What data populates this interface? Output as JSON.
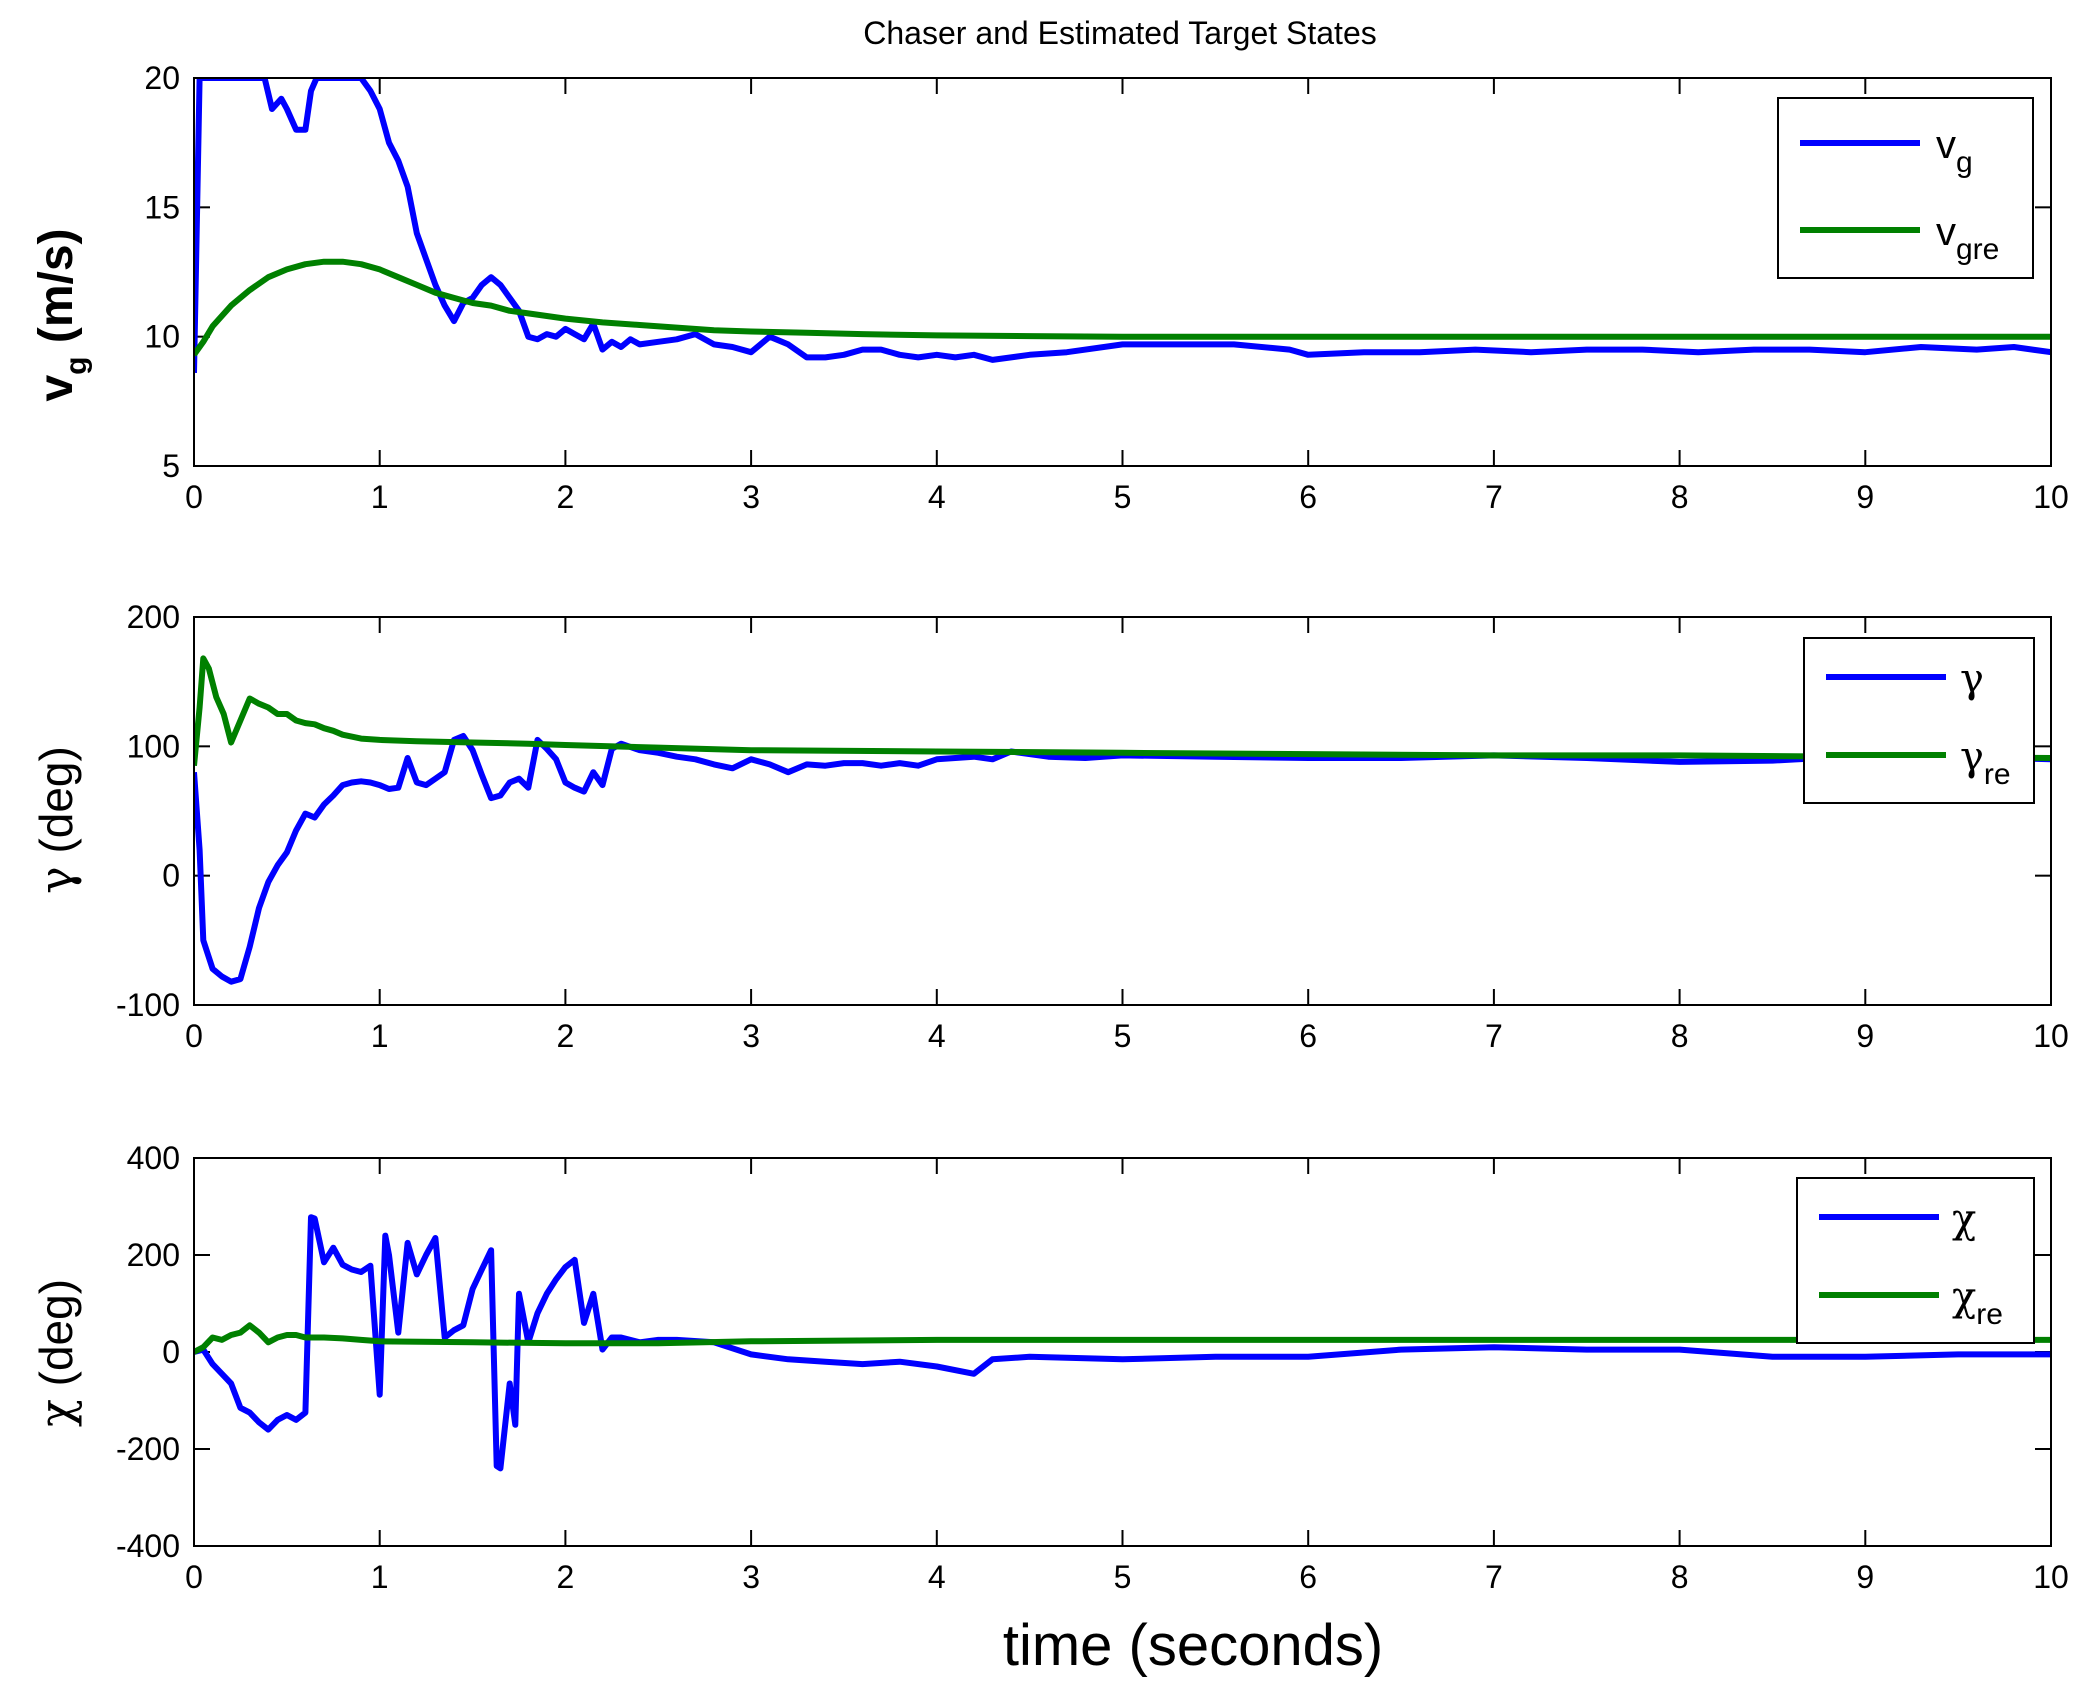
{
  "chart_data": [
    {
      "type": "line",
      "title": "Chaser and Estimated Target States",
      "xlabel": "",
      "ylabel_main": "v",
      "ylabel_sub": "g",
      "ylabel_unit": " (m/s)",
      "xlim": [
        0,
        10
      ],
      "ylim": [
        5,
        20
      ],
      "xticks": [
        "0",
        "1",
        "2",
        "3",
        "4",
        "5",
        "6",
        "7",
        "8",
        "9",
        "10"
      ],
      "yticks": [
        "5",
        "10",
        "15",
        "20"
      ],
      "ytick_values": [
        5,
        10,
        15,
        20
      ],
      "legend": [
        {
          "main": "v",
          "sub": "g"
        },
        {
          "main": "v",
          "sub": "gre"
        }
      ],
      "series": [
        {
          "name": "v_g",
          "color": "#0000ff",
          "x": [
            0,
            0.03,
            0.05,
            0.1,
            0.2,
            0.3,
            0.38,
            0.42,
            0.47,
            0.5,
            0.55,
            0.6,
            0.63,
            0.66,
            0.7,
            0.8,
            0.9,
            0.95,
            1.0,
            1.05,
            1.1,
            1.15,
            1.2,
            1.25,
            1.3,
            1.35,
            1.4,
            1.45,
            1.5,
            1.55,
            1.6,
            1.65,
            1.7,
            1.75,
            1.8,
            1.85,
            1.9,
            1.95,
            2.0,
            2.05,
            2.1,
            2.15,
            2.2,
            2.25,
            2.3,
            2.35,
            2.4,
            2.5,
            2.6,
            2.7,
            2.8,
            2.9,
            3.0,
            3.1,
            3.2,
            3.3,
            3.4,
            3.5,
            3.6,
            3.7,
            3.8,
            3.9,
            4.0,
            4.1,
            4.2,
            4.3,
            4.5,
            4.7,
            5.0,
            5.3,
            5.6,
            5.9,
            6.0,
            6.3,
            6.6,
            6.9,
            7.2,
            7.5,
            7.8,
            8.1,
            8.4,
            8.7,
            9.0,
            9.3,
            9.6,
            9.8,
            10.0
          ],
          "values": [
            8.6,
            20,
            20,
            20,
            20,
            20,
            20,
            18.8,
            19.2,
            18.8,
            18.0,
            18.0,
            19.5,
            20,
            20,
            20,
            20,
            19.5,
            18.8,
            17.5,
            16.8,
            15.8,
            14.0,
            13.0,
            12.0,
            11.2,
            10.6,
            11.3,
            11.5,
            12.0,
            12.3,
            12.0,
            11.5,
            11.0,
            10.0,
            9.9,
            10.1,
            10.0,
            10.3,
            10.1,
            9.9,
            10.5,
            9.5,
            9.8,
            9.6,
            9.9,
            9.7,
            9.8,
            9.9,
            10.1,
            9.7,
            9.6,
            9.4,
            10.0,
            9.7,
            9.2,
            9.2,
            9.3,
            9.5,
            9.5,
            9.3,
            9.2,
            9.3,
            9.2,
            9.3,
            9.1,
            9.3,
            9.4,
            9.7,
            9.7,
            9.7,
            9.5,
            9.3,
            9.4,
            9.4,
            9.5,
            9.4,
            9.5,
            9.5,
            9.4,
            9.5,
            9.5,
            9.4,
            9.6,
            9.5,
            9.6,
            9.4
          ]
        },
        {
          "name": "v_gre",
          "color": "#008000",
          "x": [
            0,
            0.05,
            0.1,
            0.2,
            0.3,
            0.4,
            0.5,
            0.6,
            0.7,
            0.8,
            0.9,
            1.0,
            1.1,
            1.2,
            1.3,
            1.4,
            1.5,
            1.6,
            1.7,
            1.8,
            1.9,
            2.0,
            2.2,
            2.4,
            2.6,
            2.8,
            3.0,
            3.3,
            3.6,
            4.0,
            4.5,
            5.0,
            6.0,
            7.0,
            8.0,
            9.0,
            10.0
          ],
          "values": [
            9.3,
            9.8,
            10.4,
            11.2,
            11.8,
            12.3,
            12.6,
            12.8,
            12.9,
            12.9,
            12.8,
            12.6,
            12.3,
            12.0,
            11.7,
            11.5,
            11.3,
            11.2,
            11.0,
            10.9,
            10.8,
            10.7,
            10.55,
            10.45,
            10.35,
            10.25,
            10.2,
            10.15,
            10.1,
            10.05,
            10.02,
            10.0,
            10.0,
            10.0,
            10.0,
            10.0,
            10.0
          ]
        }
      ]
    },
    {
      "type": "line",
      "title": "",
      "xlabel": "",
      "ylabel_main": "γ",
      "ylabel_unit": " (deg)",
      "xlim": [
        0,
        10
      ],
      "ylim": [
        -100,
        200
      ],
      "xticks": [
        "0",
        "1",
        "2",
        "3",
        "4",
        "5",
        "6",
        "7",
        "8",
        "9",
        "10"
      ],
      "yticks": [
        "-100",
        "0",
        "100",
        "200"
      ],
      "ytick_values": [
        -100,
        0,
        100,
        200
      ],
      "legend": [
        {
          "main": "γ",
          "sub": ""
        },
        {
          "main": "γ",
          "sub": "re"
        }
      ],
      "series": [
        {
          "name": "gamma",
          "color": "#0000ff",
          "x": [
            0,
            0.03,
            0.05,
            0.1,
            0.15,
            0.2,
            0.25,
            0.3,
            0.35,
            0.4,
            0.45,
            0.5,
            0.55,
            0.6,
            0.65,
            0.7,
            0.75,
            0.8,
            0.85,
            0.9,
            0.95,
            1.0,
            1.05,
            1.1,
            1.15,
            1.2,
            1.25,
            1.3,
            1.35,
            1.4,
            1.45,
            1.5,
            1.55,
            1.6,
            1.65,
            1.7,
            1.75,
            1.8,
            1.85,
            1.9,
            1.95,
            2.0,
            2.05,
            2.1,
            2.15,
            2.2,
            2.25,
            2.3,
            2.4,
            2.5,
            2.6,
            2.7,
            2.8,
            2.9,
            3.0,
            3.1,
            3.2,
            3.3,
            3.4,
            3.5,
            3.6,
            3.7,
            3.8,
            3.9,
            4.0,
            4.2,
            4.3,
            4.4,
            4.6,
            4.8,
            5.0,
            5.5,
            6.0,
            6.5,
            7.0,
            7.5,
            8.0,
            8.5,
            8.9,
            9.0,
            9.5,
            10.0
          ],
          "values": [
            80,
            20,
            -50,
            -72,
            -78,
            -82,
            -80,
            -55,
            -25,
            -5,
            8,
            18,
            35,
            48,
            45,
            55,
            62,
            70,
            72,
            73,
            72,
            70,
            67,
            68,
            91,
            72,
            70,
            75,
            80,
            105,
            108,
            97,
            78,
            60,
            62,
            72,
            75,
            68,
            105,
            98,
            90,
            72,
            68,
            65,
            80,
            70,
            98,
            102,
            97,
            95,
            92,
            90,
            86,
            83,
            90,
            86,
            80,
            86,
            85,
            87,
            87,
            85,
            87,
            85,
            90,
            92,
            90,
            96,
            92,
            91,
            93,
            92,
            91,
            91,
            93,
            91,
            88,
            89,
            92,
            91,
            92,
            90
          ]
        },
        {
          "name": "gamma_re",
          "color": "#008000",
          "x": [
            0,
            0.03,
            0.05,
            0.08,
            0.12,
            0.16,
            0.2,
            0.25,
            0.3,
            0.35,
            0.4,
            0.45,
            0.5,
            0.55,
            0.6,
            0.65,
            0.7,
            0.75,
            0.8,
            0.9,
            1.0,
            1.2,
            1.5,
            1.8,
            2.0,
            2.5,
            3.0,
            4.0,
            5.0,
            6.0,
            7.0,
            8.0,
            9.0,
            10.0
          ],
          "values": [
            85,
            130,
            168,
            160,
            138,
            125,
            103,
            120,
            137,
            133,
            130,
            125,
            125,
            120,
            118,
            117,
            114,
            112,
            109,
            106,
            105,
            104,
            103,
            102,
            101,
            99,
            97,
            96,
            95,
            94,
            93,
            93,
            92,
            91
          ]
        }
      ]
    },
    {
      "type": "line",
      "title": "",
      "xlabel": "time (seconds)",
      "ylabel_main": "χ",
      "ylabel_unit": " (deg)",
      "xlim": [
        0,
        10
      ],
      "ylim": [
        -400,
        400
      ],
      "xticks": [
        "0",
        "1",
        "2",
        "3",
        "4",
        "5",
        "6",
        "7",
        "8",
        "9",
        "10"
      ],
      "yticks": [
        "-400",
        "-200",
        "0",
        "200",
        "400"
      ],
      "ytick_values": [
        -400,
        -200,
        0,
        200,
        400
      ],
      "legend": [
        {
          "main": "χ",
          "sub": ""
        },
        {
          "main": "χ",
          "sub": "re"
        }
      ],
      "series": [
        {
          "name": "chi",
          "color": "#0000ff",
          "x": [
            0,
            0.05,
            0.1,
            0.15,
            0.2,
            0.25,
            0.3,
            0.35,
            0.4,
            0.45,
            0.5,
            0.55,
            0.6,
            0.63,
            0.65,
            0.7,
            0.75,
            0.8,
            0.85,
            0.9,
            0.95,
            1.0,
            1.03,
            1.05,
            1.1,
            1.15,
            1.2,
            1.25,
            1.3,
            1.35,
            1.4,
            1.45,
            1.5,
            1.55,
            1.6,
            1.63,
            1.65,
            1.7,
            1.73,
            1.75,
            1.8,
            1.85,
            1.9,
            1.95,
            2.0,
            2.05,
            2.1,
            2.15,
            2.2,
            2.25,
            2.3,
            2.4,
            2.5,
            2.6,
            2.8,
            3.0,
            3.2,
            3.4,
            3.6,
            3.8,
            4.0,
            4.2,
            4.3,
            4.5,
            5.0,
            5.5,
            6.0,
            6.5,
            7.0,
            7.5,
            8.0,
            8.5,
            9.0,
            9.5,
            10.0
          ],
          "values": [
            0,
            5,
            -25,
            -45,
            -65,
            -115,
            -125,
            -145,
            -160,
            -140,
            -130,
            -140,
            -125,
            278,
            275,
            185,
            215,
            180,
            170,
            165,
            178,
            -88,
            240,
            200,
            40,
            225,
            160,
            200,
            235,
            30,
            45,
            55,
            130,
            170,
            210,
            -235,
            -240,
            -65,
            -150,
            120,
            20,
            80,
            120,
            150,
            175,
            190,
            60,
            120,
            5,
            30,
            30,
            20,
            25,
            25,
            20,
            -5,
            -15,
            -20,
            -25,
            -20,
            -30,
            -45,
            -15,
            -10,
            -15,
            -10,
            -10,
            5,
            10,
            5,
            5,
            -10,
            -10,
            -5,
            -5
          ]
        },
        {
          "name": "chi_re",
          "color": "#008000",
          "x": [
            0,
            0.05,
            0.1,
            0.15,
            0.2,
            0.25,
            0.3,
            0.35,
            0.4,
            0.45,
            0.5,
            0.55,
            0.6,
            0.7,
            0.8,
            0.9,
            1.0,
            1.5,
            2.0,
            2.5,
            3.0,
            4.0,
            5.0,
            6.0,
            7.0,
            8.0,
            9.0,
            10.0
          ],
          "values": [
            0,
            10,
            30,
            25,
            35,
            40,
            55,
            40,
            20,
            30,
            35,
            35,
            30,
            30,
            28,
            25,
            22,
            20,
            18,
            18,
            22,
            25,
            25,
            25,
            25,
            25,
            25,
            25
          ]
        }
      ]
    }
  ]
}
